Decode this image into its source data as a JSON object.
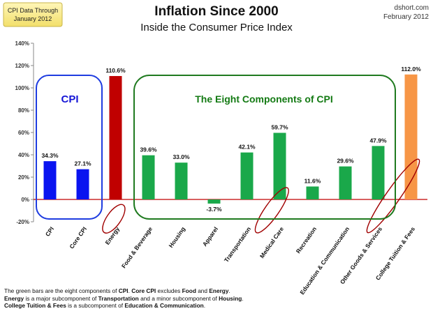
{
  "badge": {
    "line1": "CPI Data Through",
    "line2": "January 2012"
  },
  "title": "Inflation Since 2000",
  "subtitle": "Inside the Consumer Price Index",
  "source": {
    "site": "dshort.com",
    "date": "February 2012"
  },
  "group_labels": {
    "cpi": "CPI",
    "components": "The Eight Components of CPI"
  },
  "chart_data": {
    "type": "bar",
    "title": "Inflation Since 2000",
    "subtitle": "Inside the Consumer Price Index",
    "categories": [
      "CPI",
      "Core CPI",
      "Energy",
      "Food & Beverage",
      "Housing",
      "Apparel",
      "Transportation",
      "Medical Care",
      "Recreation",
      "Education & Communication",
      "Other Goods & Services",
      "College Tuition & Fees"
    ],
    "values": [
      34.3,
      27.1,
      110.6,
      39.6,
      33.0,
      -3.7,
      42.1,
      59.7,
      11.6,
      29.6,
      47.9,
      112.0
    ],
    "value_labels": [
      "34.3%",
      "27.1%",
      "110.6%",
      "39.6%",
      "33.0%",
      "-3.7%",
      "42.1%",
      "59.7%",
      "11.6%",
      "29.6%",
      "47.9%",
      "112.0%"
    ],
    "colors": [
      "#0a14f0",
      "#0a14f0",
      "#c00000",
      "#1aa84a",
      "#1aa84a",
      "#1aa84a",
      "#1aa84a",
      "#1aa84a",
      "#1aa84a",
      "#1aa84a",
      "#1aa84a",
      "#f79646"
    ],
    "circled": [
      "Energy",
      "Medical Care",
      "College Tuition & Fees"
    ],
    "ylim": [
      -20,
      140
    ],
    "yticks": [
      -20,
      0,
      20,
      40,
      60,
      80,
      100,
      120,
      140
    ],
    "ytick_labels": [
      "-20%",
      "0%",
      "20%",
      "40%",
      "60%",
      "80%",
      "100%",
      "120%",
      "140%"
    ],
    "zero_line_color": "#c00000",
    "grid": false,
    "legend": "none"
  },
  "note": {
    "line1": [
      {
        "t": "The green bars are the eight components of ",
        "b": false
      },
      {
        "t": "CPI",
        "b": true
      },
      {
        "t": ". ",
        "b": false
      },
      {
        "t": "Core CPI",
        "b": true
      },
      {
        "t": " excludes ",
        "b": false
      },
      {
        "t": "Food",
        "b": true
      },
      {
        "t": " and ",
        "b": false
      },
      {
        "t": "Energy",
        "b": true
      },
      {
        "t": ".",
        "b": false
      }
    ],
    "line2": [
      {
        "t": "Energy",
        "b": true
      },
      {
        "t": " is a major subcomponent of ",
        "b": false
      },
      {
        "t": "Transportation",
        "b": true
      },
      {
        "t": " and a minor subcomponent of ",
        "b": false
      },
      {
        "t": "Housing",
        "b": true
      },
      {
        "t": ".",
        "b": false
      }
    ],
    "line3": [
      {
        "t": "College Tuition & Fees",
        "b": true
      },
      {
        "t": " is a subcomponent of ",
        "b": false
      },
      {
        "t": "Education & Communication",
        "b": true
      },
      {
        "t": ".",
        "b": false
      }
    ]
  }
}
